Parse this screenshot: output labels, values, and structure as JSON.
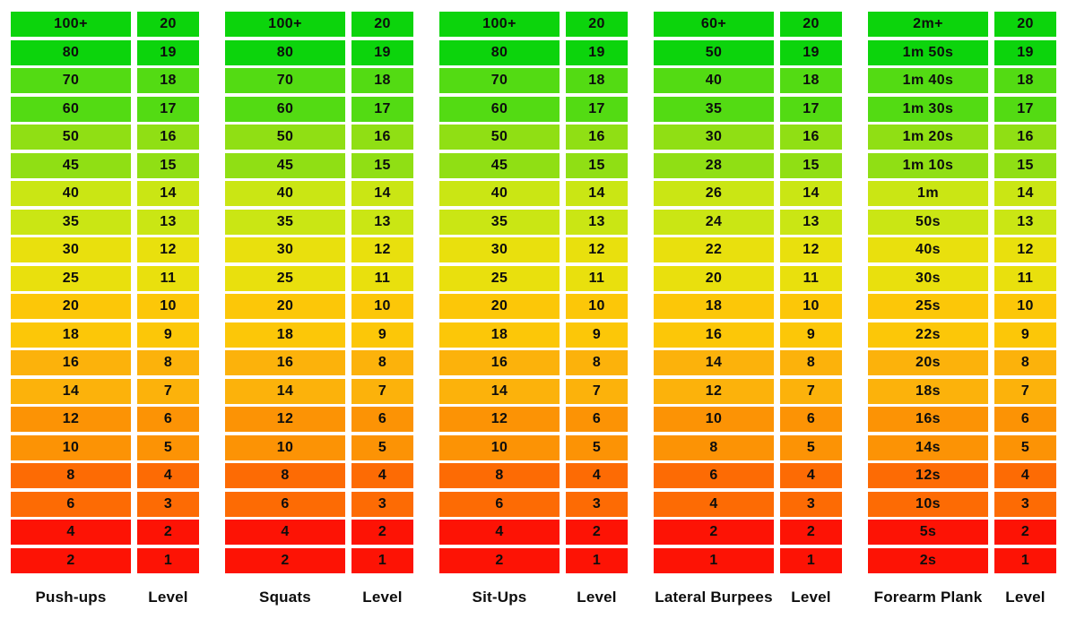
{
  "page": {
    "background": "#ffffff",
    "text_color": "#0d0d0d"
  },
  "chart_data": {
    "type": "table",
    "layout": "5 exercise columns each paired with a Level column; 20 rows graded green (top, level 20) to red (bottom, level 1); each color band spans 2 rows",
    "level_column_header": "Level",
    "levels": [
      "20",
      "19",
      "18",
      "17",
      "16",
      "15",
      "14",
      "13",
      "12",
      "11",
      "10",
      "9",
      "8",
      "7",
      "6",
      "5",
      "4",
      "3",
      "2",
      "1"
    ],
    "row_colors_by_pair": [
      "#0cd40c",
      "#53db13",
      "#90df14",
      "#cae614",
      "#e9e00d",
      "#fcc708",
      "#fcb20b",
      "#fc9305",
      "#fd6b04",
      "#fd1305"
    ],
    "groups": [
      {
        "label": "Push-ups",
        "values": [
          "100+",
          "80",
          "70",
          "60",
          "50",
          "45",
          "40",
          "35",
          "30",
          "25",
          "20",
          "18",
          "16",
          "14",
          "12",
          "10",
          "8",
          "6",
          "4",
          "2"
        ]
      },
      {
        "label": "Squats",
        "values": [
          "100+",
          "80",
          "70",
          "60",
          "50",
          "45",
          "40",
          "35",
          "30",
          "25",
          "20",
          "18",
          "16",
          "14",
          "12",
          "10",
          "8",
          "6",
          "4",
          "2"
        ]
      },
      {
        "label": "Sit-Ups",
        "values": [
          "100+",
          "80",
          "70",
          "60",
          "50",
          "45",
          "40",
          "35",
          "30",
          "25",
          "20",
          "18",
          "16",
          "14",
          "12",
          "10",
          "8",
          "6",
          "4",
          "2"
        ]
      },
      {
        "label": "Lateral Burpees",
        "values": [
          "60+",
          "50",
          "40",
          "35",
          "30",
          "28",
          "26",
          "24",
          "22",
          "20",
          "18",
          "16",
          "14",
          "12",
          "10",
          "8",
          "6",
          "4",
          "2",
          "1"
        ]
      },
      {
        "label": "Forearm Plank",
        "values": [
          "2m+",
          "1m 50s",
          "1m 40s",
          "1m 30s",
          "1m 20s",
          "1m 10s",
          "1m",
          "50s",
          "40s",
          "30s",
          "25s",
          "22s",
          "20s",
          "18s",
          "16s",
          "14s",
          "12s",
          "10s",
          "5s",
          "2s"
        ]
      }
    ]
  }
}
